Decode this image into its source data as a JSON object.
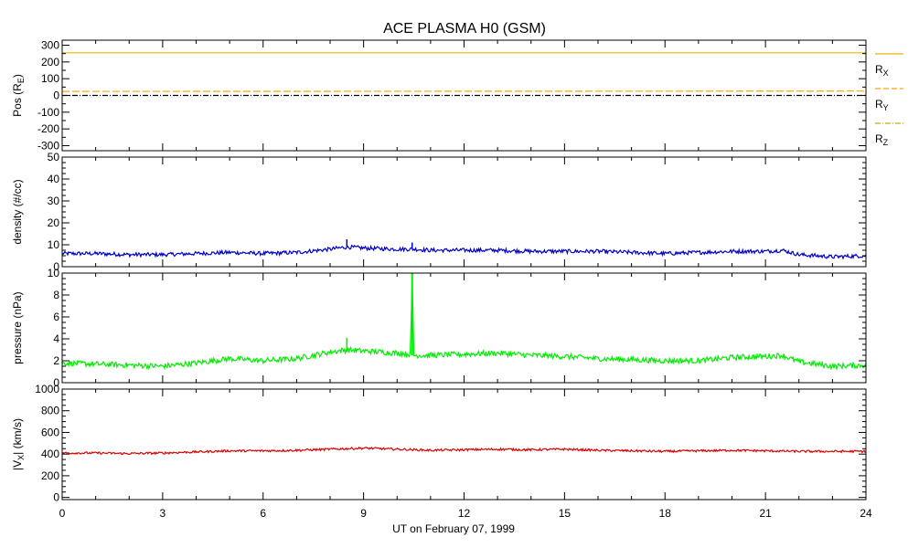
{
  "chart_data": {
    "type": "line",
    "title": "ACE PLASMA H0 (GSM)",
    "xlabel": "UT on February 07, 1999",
    "xlim": [
      0,
      24
    ],
    "xticks": [
      "0",
      "3",
      "6",
      "9",
      "12",
      "15",
      "18",
      "21",
      "24"
    ],
    "colors": {
      "rx": "#e6b800",
      "ry": "#ffa500",
      "rz": "#ccaa00",
      "density": "#0000cc",
      "pressure": "#00ee00",
      "vx": "#dd0000"
    },
    "panels": [
      {
        "id": "pos",
        "ylabel": "Pos (R",
        "ylabel_sub": "E",
        "ylabel_end": ")",
        "ylim": [
          -330,
          330
        ],
        "yticks": [
          "300",
          "200",
          "100",
          "0",
          "-100",
          "-200",
          "-300"
        ],
        "yticks_values": [
          300,
          200,
          100,
          0,
          -100,
          -200,
          -300
        ],
        "legend": [
          {
            "label": "R",
            "sub": "X",
            "style": "solid"
          },
          {
            "label": "R",
            "sub": "Y",
            "style": "dash"
          },
          {
            "label": "R",
            "sub": "Z",
            "style": "dashdot"
          }
        ],
        "series": [
          {
            "name": "RX",
            "x": [
              0,
              24
            ],
            "values": [
              255,
              255
            ]
          },
          {
            "name": "RY",
            "x": [
              0,
              24
            ],
            "values": [
              24,
              26
            ]
          },
          {
            "name": "RZ",
            "x": [
              0,
              24
            ],
            "values": [
              0,
              0
            ]
          }
        ]
      },
      {
        "id": "density",
        "ylabel": "density (#/cc)",
        "ylim": [
          0,
          50
        ],
        "yticks": [
          "50",
          "40",
          "30",
          "20",
          "10",
          "0"
        ],
        "yticks_values": [
          50,
          40,
          30,
          20,
          10,
          0
        ],
        "series": [
          {
            "name": "density",
            "x": [
              0,
              1,
              2,
              3,
              4,
              5,
              6,
              7,
              8,
              8.5,
              9,
              10,
              10.5,
              11,
              12,
              13,
              14,
              15,
              16,
              17,
              18,
              19,
              20,
              21,
              21.5,
              22,
              23,
              24
            ],
            "values": [
              6,
              6,
              5.5,
              5.5,
              6,
              6.5,
              6,
              6.5,
              8,
              9,
              8.5,
              8,
              8,
              7.5,
              7.5,
              7.5,
              7,
              7,
              7,
              6.5,
              6,
              6.5,
              7,
              7,
              7.5,
              5.5,
              4.5,
              5
            ]
          }
        ]
      },
      {
        "id": "pressure",
        "ylabel": "pressure (nPa)",
        "ylim": [
          0,
          10
        ],
        "yticks": [
          "10",
          "8",
          "6",
          "4",
          "2",
          "0"
        ],
        "yticks_values": [
          10,
          8,
          6,
          4,
          2,
          0
        ],
        "series": [
          {
            "name": "pressure",
            "x": [
              0,
              1,
              2,
              3,
              4,
              5,
              6,
              7,
              8,
              8.5,
              9,
              10,
              10.4,
              10.45,
              10.5,
              11,
              12,
              13,
              14,
              15,
              16,
              17,
              18,
              19,
              20,
              21,
              21.5,
              22,
              23,
              24
            ],
            "values": [
              1.8,
              1.7,
              1.6,
              1.5,
              1.8,
              2.2,
              2.0,
              2.2,
              2.8,
              3.0,
              2.9,
              2.7,
              2.6,
              10.0,
              2.5,
              2.5,
              2.6,
              2.7,
              2.5,
              2.4,
              2.2,
              2.1,
              2.0,
              2.0,
              2.3,
              2.4,
              2.5,
              1.9,
              1.5,
              1.6
            ]
          }
        ]
      },
      {
        "id": "vx",
        "ylabel": "|V",
        "ylabel_sub": "X",
        "ylabel_end": "| (km/s)",
        "ylim": [
          -20,
          1000
        ],
        "yticks": [
          "1000",
          "800",
          "600",
          "400",
          "200",
          "0"
        ],
        "yticks_values": [
          1000,
          800,
          600,
          400,
          200,
          0
        ],
        "series": [
          {
            "name": "|VX|",
            "x": [
              0,
              1,
              2,
              3,
              4,
              5,
              6,
              7,
              8,
              9,
              10,
              11,
              12,
              13,
              14,
              15,
              16,
              17,
              18,
              19,
              20,
              21,
              22,
              23,
              24
            ],
            "values": [
              410,
              410,
              405,
              410,
              420,
              430,
              430,
              435,
              445,
              455,
              445,
              435,
              440,
              445,
              440,
              445,
              435,
              430,
              425,
              430,
              435,
              430,
              425,
              425,
              425
            ]
          }
        ]
      }
    ]
  }
}
